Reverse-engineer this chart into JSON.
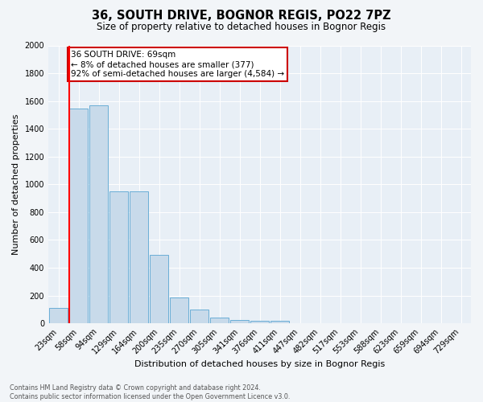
{
  "title": "36, SOUTH DRIVE, BOGNOR REGIS, PO22 7PZ",
  "subtitle": "Size of property relative to detached houses in Bognor Regis",
  "xlabel": "Distribution of detached houses by size in Bognor Regis",
  "ylabel": "Number of detached properties",
  "bar_labels": [
    "23sqm",
    "58sqm",
    "94sqm",
    "129sqm",
    "164sqm",
    "200sqm",
    "235sqm",
    "270sqm",
    "305sqm",
    "341sqm",
    "376sqm",
    "411sqm",
    "447sqm",
    "482sqm",
    "517sqm",
    "553sqm",
    "588sqm",
    "623sqm",
    "659sqm",
    "694sqm",
    "729sqm"
  ],
  "bar_values": [
    110,
    1545,
    1570,
    950,
    950,
    490,
    185,
    100,
    40,
    25,
    20,
    18,
    0,
    0,
    0,
    0,
    0,
    0,
    0,
    0,
    0
  ],
  "bar_color": "#c8daea",
  "bar_edge_color": "#6aaed6",
  "ylim": [
    0,
    2000
  ],
  "yticks": [
    0,
    200,
    400,
    600,
    800,
    1000,
    1200,
    1400,
    1600,
    1800,
    2000
  ],
  "red_line_x": 0.55,
  "annotation_text": "36 SOUTH DRIVE: 69sqm\n← 8% of detached houses are smaller (377)\n92% of semi-detached houses are larger (4,584) →",
  "annotation_box_color": "#ffffff",
  "annotation_box_edge": "#cc0000",
  "footer_text": "Contains HM Land Registry data © Crown copyright and database right 2024.\nContains public sector information licensed under the Open Government Licence v3.0.",
  "background_color": "#f2f5f8",
  "plot_bg_color": "#e8eff6",
  "grid_color": "#ffffff",
  "title_fontsize": 10.5,
  "subtitle_fontsize": 8.5,
  "ylabel_fontsize": 8,
  "xlabel_fontsize": 8,
  "tick_fontsize": 7,
  "footer_fontsize": 5.8,
  "annot_fontsize": 7.5
}
